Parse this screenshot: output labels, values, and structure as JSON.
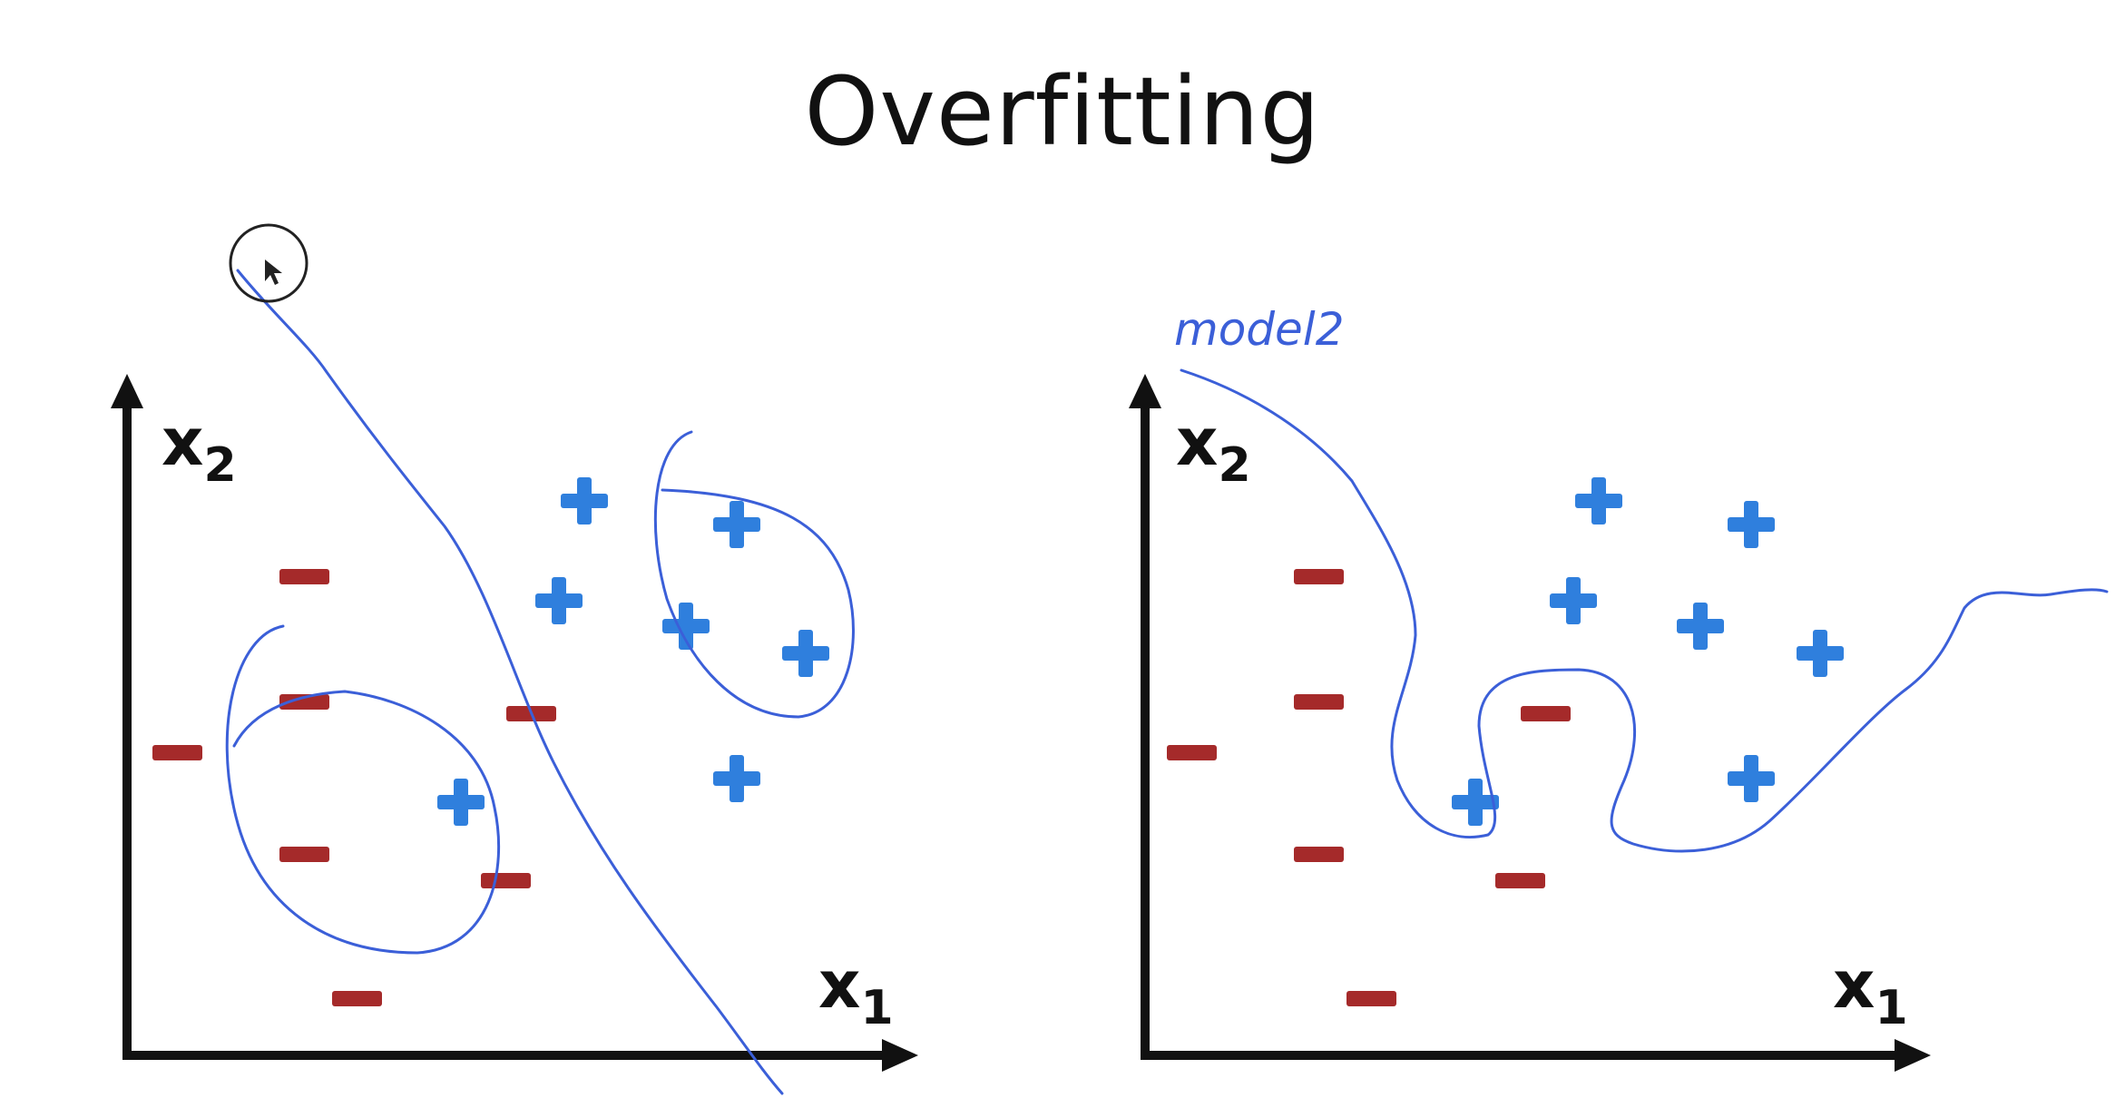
{
  "title": "Overfitting",
  "colors": {
    "positive": "#2f7fdd",
    "negative": "#a52a2a",
    "ink": "#3b5fd8",
    "axis": "#111111"
  },
  "panels": [
    {
      "x_label": "x",
      "x_sub": "1",
      "y_label": "x",
      "y_sub": "2",
      "annotation": ""
    },
    {
      "x_label": "x",
      "x_sub": "1",
      "y_label": "x",
      "y_sub": "2",
      "annotation": "model2"
    }
  ]
}
